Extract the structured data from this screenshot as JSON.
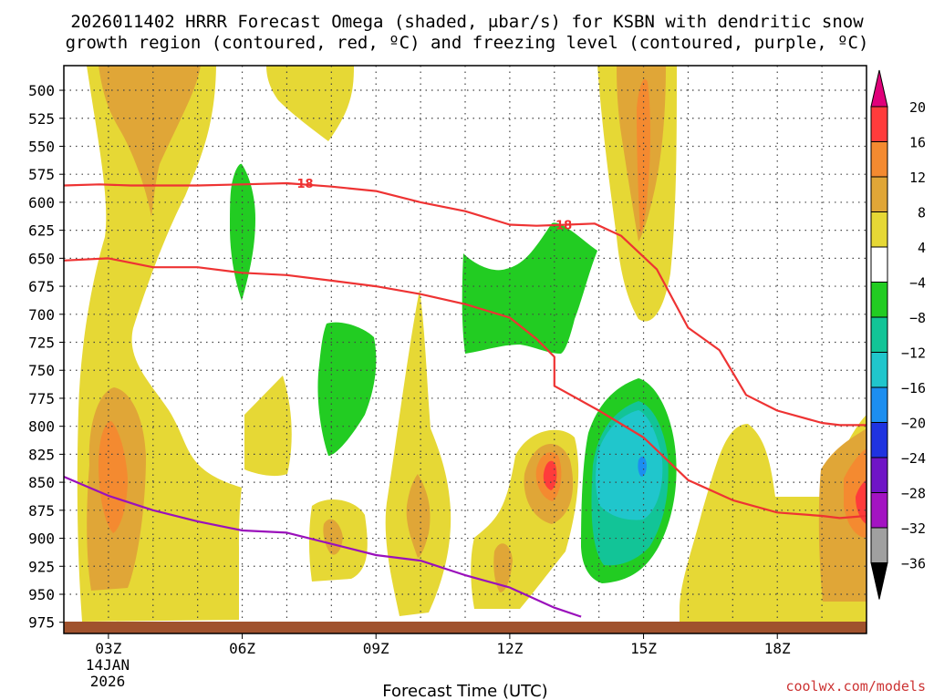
{
  "chart_data": {
    "type": "heatmap",
    "title_lines": [
      "2026011402 HRRR Forecast Omega (shaded, μbar/s) for KSBN with dendritic snow",
      "growth region (contoured, red, ºC) and freezing level (contoured, purple, ºC)"
    ],
    "xlabel": "Forecast Time (UTC)",
    "x_ticks": [
      "03Z",
      "06Z",
      "09Z",
      "12Z",
      "15Z",
      "18Z"
    ],
    "x_hours": [
      3,
      6,
      9,
      12,
      15,
      18
    ],
    "x_range_hours": [
      2,
      20
    ],
    "date_label": [
      "14JAN",
      "2026"
    ],
    "y_ticks": [
      500,
      525,
      550,
      575,
      600,
      625,
      650,
      675,
      700,
      725,
      750,
      775,
      800,
      825,
      850,
      875,
      900,
      925,
      950,
      975
    ],
    "y_range_hpa": [
      478,
      985
    ],
    "colorbar_levels": [
      20,
      16,
      12,
      8,
      4,
      -4,
      -8,
      -12,
      -16,
      -20,
      -24,
      -28,
      -32,
      -36
    ],
    "colorbar_colors": {
      "above_20": "#e0007a",
      "16_20": "#ff3b3b",
      "12_16": "#f48a30",
      "8_12": "#e0a637",
      "4_8": "#e6d835",
      "-4_4": "#ffffff",
      "-8_-4": "#22cc22",
      "-12_-8": "#12c497",
      "-16_-12": "#20c6cc",
      "-20_-16": "#1c8ef0",
      "-24_-20": "#1f33e0",
      "-28_-24": "#6f14c6",
      "-32_-28": "#a313c2",
      "-36_-32": "#a0a0a0",
      "below_-36": "#000000"
    },
    "contours": [
      {
        "name": "dgz-top",
        "label": "−18",
        "color": "#ee3333",
        "points": [
          [
            2,
            585
          ],
          [
            2.8,
            584
          ],
          [
            3.5,
            585
          ],
          [
            5,
            585
          ],
          [
            6,
            584
          ],
          [
            7,
            583
          ],
          [
            8,
            586
          ],
          [
            9,
            590
          ],
          [
            10,
            600
          ],
          [
            11,
            608
          ],
          [
            12,
            620
          ],
          [
            12.6,
            621
          ],
          [
            13.3,
            620
          ],
          [
            13.9,
            619
          ],
          [
            14.5,
            630
          ],
          [
            15.3,
            660
          ],
          [
            16,
            712
          ],
          [
            16.7,
            732
          ],
          [
            17.3,
            772
          ],
          [
            18,
            786
          ],
          [
            19,
            797
          ],
          [
            19.4,
            799
          ],
          [
            20,
            799
          ]
        ],
        "label_positions": [
          [
            7.3,
            583
          ],
          [
            13.1,
            620
          ]
        ]
      },
      {
        "name": "dgz-bottom",
        "label": "",
        "color": "#ee3333",
        "points": [
          [
            2,
            652
          ],
          [
            3,
            650
          ],
          [
            4,
            658
          ],
          [
            5,
            658
          ],
          [
            6,
            663
          ],
          [
            7,
            665
          ],
          [
            8,
            670
          ],
          [
            9,
            675
          ],
          [
            10,
            682
          ],
          [
            11,
            691
          ],
          [
            12,
            703
          ],
          [
            12.6,
            722
          ],
          [
            13,
            738
          ],
          [
            13,
            764
          ],
          [
            14,
            786
          ],
          [
            15,
            810
          ],
          [
            16,
            848
          ],
          [
            17,
            866
          ],
          [
            18,
            877
          ],
          [
            19,
            880
          ],
          [
            19.4,
            882
          ],
          [
            20,
            880
          ]
        ]
      },
      {
        "name": "freezing-level",
        "label": "",
        "color": "#9a10bb",
        "points": [
          [
            2,
            845
          ],
          [
            3,
            862
          ],
          [
            4,
            875
          ],
          [
            5,
            885
          ],
          [
            6,
            893
          ],
          [
            7,
            895
          ],
          [
            8,
            905
          ],
          [
            9,
            915
          ],
          [
            10,
            920
          ],
          [
            11,
            933
          ],
          [
            12,
            944
          ],
          [
            13,
            962
          ],
          [
            13.6,
            970
          ]
        ]
      }
    ],
    "ground_pressure_hpa": 975
  },
  "credit": "coolwx.com/models"
}
